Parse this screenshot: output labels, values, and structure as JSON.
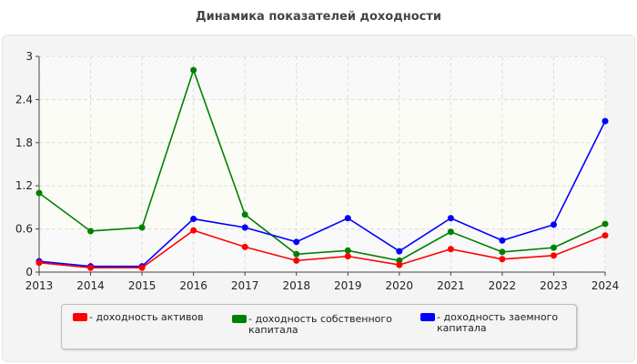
{
  "chart_data": {
    "type": "line",
    "title": "Динамика показателей доходности",
    "xlabel": "",
    "ylabel": "",
    "x": [
      2013,
      2014,
      2015,
      2016,
      2017,
      2018,
      2019,
      2020,
      2021,
      2022,
      2023,
      2024
    ],
    "ylim": [
      0,
      3
    ],
    "yticks": [
      "0",
      "0.6",
      "1.2",
      "1.8",
      "2.4",
      "3"
    ],
    "grid": true,
    "legend_position": "bottom",
    "series": [
      {
        "name": "- доходность активов",
        "color": "#ff0000",
        "values": [
          0.13,
          0.06,
          0.06,
          0.58,
          0.35,
          0.16,
          0.22,
          0.1,
          0.32,
          0.18,
          0.23,
          0.51
        ]
      },
      {
        "name": "- доходность собственного капитала",
        "color": "#008000",
        "values": [
          1.1,
          0.57,
          0.62,
          2.81,
          0.8,
          0.25,
          0.3,
          0.16,
          0.56,
          0.28,
          0.34,
          0.67
        ]
      },
      {
        "name": "- доходность заемного капитала",
        "color": "#0000ff",
        "values": [
          0.15,
          0.08,
          0.08,
          0.74,
          0.62,
          0.42,
          0.75,
          0.29,
          0.75,
          0.44,
          0.66,
          2.1
        ]
      }
    ]
  }
}
